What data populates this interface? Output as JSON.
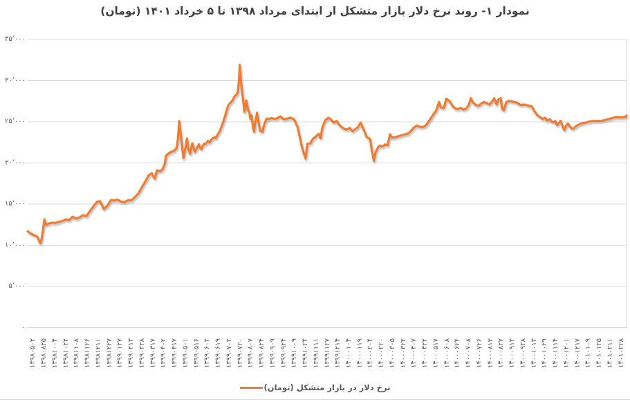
{
  "colors": {
    "line": "#ED7D31",
    "grid": "#D9D9D9",
    "axis_text": "#595959",
    "title_text": "#404040"
  },
  "legend": {
    "label": "نرخ دلار در بازار متشکل (تومان)"
  },
  "chart_data": {
    "type": "line",
    "title": "نمودار ۱- روند نرخ دلار بازار متشکل از ابتدای مرداد ۱۳۹۸ تا ۵ خرداد ۱۴۰۱ (تومان)",
    "xlabel": "",
    "ylabel": "",
    "ylim": [
      0,
      35000
    ],
    "grid": true,
    "legend_position": "bottom",
    "y_ticks": [
      {
        "value": 35000,
        "label": "۳۵٬۰۰۰"
      },
      {
        "value": 30000,
        "label": "۳۰٬۰۰۰"
      },
      {
        "value": 25000,
        "label": "۲۵٬۰۰۰"
      },
      {
        "value": 20000,
        "label": "۲۰٬۰۰۰"
      },
      {
        "value": 15000,
        "label": "۱۵٬۰۰۰"
      },
      {
        "value": 10000,
        "label": "۱۰٬۰۰۰"
      },
      {
        "value": 5000,
        "label": "۵٬۰۰۰"
      },
      {
        "value": 0,
        "label": "۰"
      }
    ],
    "x_tick_labels": [
      "۱۳۹۸۰۵۰۲",
      "۱۳۹۸۰۸۲۵",
      "۱۳۹۸۱۰۰۴",
      "۱۳۹۸۱۰۲۲",
      "۱۳۹۸۱۱۰۸",
      "۱۳۹۸۱۱۲۶",
      "۱۳۹۸۱۲۱۱",
      "۱۳۹۸۱۲۲۷",
      "۱۳۹۹۰۱۲۷",
      "۱۳۹۹۰۲۱۳",
      "۱۳۹۹۰۲۲۸",
      "۱۳۹۹۰۳۱۷",
      "۱۳۹۹۰۴۰۲",
      "۱۳۹۹۰۴۱۷",
      "۱۳۹۹۰۵۰۱",
      "۱۳۹۹۰۵۱۶",
      "۱۳۹۹۰۶۰۲",
      "۱۳۹۹۰۶۱۹",
      "۱۳۹۹۰۷۰۲",
      "۱۳۹۹۰۷۲۰",
      "۱۳۹۹۰۸۰۷",
      "۱۳۹۹۰۸۲۴",
      "۱۳۹۹۰۹۰۹",
      "۱۳۹۹۰۹۲۴",
      "۱۳۹۹۱۰۰۹",
      "۱۳۹۹۱۰۲۴",
      "۱۳۹۹۱۱۱۱",
      "۱۳۹۹۱۱۲۷",
      "۱۳۹۹۱۲۱۴",
      "۱۴۰۰۰۱۰۴",
      "۱۴۰۰۰۱۱۹",
      "۱۴۰۰۰۲۰۴",
      "۱۴۰۰۰۲۲۰",
      "۱۴۰۰۰۳۰۵",
      "۱۴۰۰۰۳۲۲",
      "۱۴۰۰۰۴۰۷",
      "۱۴۰۰۰۴۲۲",
      "۱۴۰۰۰۵۱۷",
      "۱۴۰۰۰۶۰۸",
      "۱۴۰۰۰۶۲۴",
      "۱۴۰۰۰۷۰۸",
      "۱۴۰۰۰۷۲۶",
      "۱۴۰۰۰۸۱۲",
      "۱۴۰۰۰۸۲۷",
      "۱۴۰۰۰۹۱۲",
      "۱۴۰۰۰۹۲۸",
      "۱۴۰۰۱۰۱۳",
      "۱۴۰۰۱۰۲۹",
      "۱۴۰۰۱۱۱۴",
      "۱۴۰۰۱۲۰۱",
      "۱۴۰۰۱۲۱۷",
      "۱۴۰۱۰۱۰۹",
      "۱۴۰۱۰۱۲۵",
      "۱۴۰۱۰۲۱۱",
      "۱۴۰۱۰۲۲۸"
    ],
    "x_unit": "fraction of x-axis (0-1)",
    "series": [
      {
        "name": "نرخ دلار در بازار متشکل (تومان)",
        "color": "#ED7D31",
        "points": [
          [
            0.0,
            11700
          ],
          [
            0.006,
            11400
          ],
          [
            0.01,
            11250
          ],
          [
            0.014,
            11150
          ],
          [
            0.017,
            10950
          ],
          [
            0.021,
            10250
          ],
          [
            0.023,
            10600
          ],
          [
            0.026,
            12100
          ],
          [
            0.028,
            13150
          ],
          [
            0.03,
            12480
          ],
          [
            0.034,
            12600
          ],
          [
            0.037,
            12670
          ],
          [
            0.042,
            12760
          ],
          [
            0.046,
            12700
          ],
          [
            0.052,
            12850
          ],
          [
            0.058,
            12950
          ],
          [
            0.064,
            13150
          ],
          [
            0.069,
            13050
          ],
          [
            0.075,
            13480
          ],
          [
            0.081,
            13230
          ],
          [
            0.087,
            13400
          ],
          [
            0.092,
            13650
          ],
          [
            0.098,
            13550
          ],
          [
            0.104,
            14150
          ],
          [
            0.11,
            14750
          ],
          [
            0.116,
            15300
          ],
          [
            0.121,
            15350
          ],
          [
            0.127,
            14400
          ],
          [
            0.133,
            14800
          ],
          [
            0.139,
            15500
          ],
          [
            0.145,
            15450
          ],
          [
            0.15,
            15550
          ],
          [
            0.156,
            15300
          ],
          [
            0.162,
            15250
          ],
          [
            0.168,
            15500
          ],
          [
            0.173,
            15450
          ],
          [
            0.179,
            15850
          ],
          [
            0.185,
            16300
          ],
          [
            0.191,
            17100
          ],
          [
            0.197,
            17800
          ],
          [
            0.202,
            18500
          ],
          [
            0.207,
            18750
          ],
          [
            0.212,
            18100
          ],
          [
            0.216,
            19100
          ],
          [
            0.221,
            19000
          ],
          [
            0.225,
            19200
          ],
          [
            0.229,
            19900
          ],
          [
            0.231,
            20880
          ],
          [
            0.236,
            21200
          ],
          [
            0.24,
            21350
          ],
          [
            0.245,
            21500
          ],
          [
            0.249,
            21860
          ],
          [
            0.251,
            22980
          ],
          [
            0.253,
            25080
          ],
          [
            0.257,
            22500
          ],
          [
            0.26,
            20600
          ],
          [
            0.264,
            22000
          ],
          [
            0.266,
            22980
          ],
          [
            0.268,
            21860
          ],
          [
            0.271,
            21100
          ],
          [
            0.275,
            22400
          ],
          [
            0.279,
            21350
          ],
          [
            0.282,
            21750
          ],
          [
            0.286,
            22280
          ],
          [
            0.288,
            21800
          ],
          [
            0.29,
            21700
          ],
          [
            0.294,
            22300
          ],
          [
            0.297,
            22300
          ],
          [
            0.301,
            22700
          ],
          [
            0.304,
            22500
          ],
          [
            0.308,
            22950
          ],
          [
            0.312,
            23120
          ],
          [
            0.314,
            23000
          ],
          [
            0.318,
            23550
          ],
          [
            0.321,
            23900
          ],
          [
            0.325,
            24650
          ],
          [
            0.328,
            25300
          ],
          [
            0.332,
            26300
          ],
          [
            0.335,
            27000
          ],
          [
            0.339,
            27350
          ],
          [
            0.342,
            27600
          ],
          [
            0.346,
            28150
          ],
          [
            0.349,
            28300
          ],
          [
            0.351,
            28600
          ],
          [
            0.353,
            30200
          ],
          [
            0.354,
            31900
          ],
          [
            0.356,
            30000
          ],
          [
            0.358,
            28700
          ],
          [
            0.36,
            27450
          ],
          [
            0.362,
            26200
          ],
          [
            0.365,
            27600
          ],
          [
            0.368,
            26400
          ],
          [
            0.37,
            26200
          ],
          [
            0.372,
            25300
          ],
          [
            0.374,
            25800
          ],
          [
            0.376,
            24400
          ],
          [
            0.378,
            23800
          ],
          [
            0.38,
            24900
          ],
          [
            0.383,
            26100
          ],
          [
            0.385,
            25200
          ],
          [
            0.388,
            23900
          ],
          [
            0.392,
            23800
          ],
          [
            0.395,
            24700
          ],
          [
            0.399,
            25400
          ],
          [
            0.402,
            25300
          ],
          [
            0.407,
            25450
          ],
          [
            0.412,
            25350
          ],
          [
            0.416,
            25400
          ],
          [
            0.422,
            25650
          ],
          [
            0.428,
            25300
          ],
          [
            0.434,
            25400
          ],
          [
            0.439,
            25500
          ],
          [
            0.445,
            25300
          ],
          [
            0.451,
            24300
          ],
          [
            0.457,
            22200
          ],
          [
            0.461,
            21200
          ],
          [
            0.464,
            20550
          ],
          [
            0.467,
            22300
          ],
          [
            0.472,
            22400
          ],
          [
            0.476,
            22900
          ],
          [
            0.481,
            23200
          ],
          [
            0.486,
            23550
          ],
          [
            0.489,
            23000
          ],
          [
            0.492,
            24300
          ],
          [
            0.497,
            25200
          ],
          [
            0.502,
            25500
          ],
          [
            0.506,
            25300
          ],
          [
            0.511,
            24900
          ],
          [
            0.516,
            25100
          ],
          [
            0.52,
            24650
          ],
          [
            0.526,
            24250
          ],
          [
            0.532,
            24050
          ],
          [
            0.538,
            24250
          ],
          [
            0.542,
            23850
          ],
          [
            0.547,
            24100
          ],
          [
            0.551,
            24300
          ],
          [
            0.556,
            24900
          ],
          [
            0.559,
            24400
          ],
          [
            0.563,
            23700
          ],
          [
            0.566,
            23150
          ],
          [
            0.57,
            23000
          ],
          [
            0.572,
            22840
          ],
          [
            0.574,
            21800
          ],
          [
            0.578,
            20250
          ],
          [
            0.581,
            21300
          ],
          [
            0.585,
            21900
          ],
          [
            0.588,
            22100
          ],
          [
            0.592,
            21980
          ],
          [
            0.597,
            22250
          ],
          [
            0.601,
            22140
          ],
          [
            0.605,
            23500
          ],
          [
            0.608,
            23100
          ],
          [
            0.613,
            23100
          ],
          [
            0.617,
            23200
          ],
          [
            0.622,
            23300
          ],
          [
            0.627,
            23400
          ],
          [
            0.631,
            23500
          ],
          [
            0.636,
            23600
          ],
          [
            0.64,
            23900
          ],
          [
            0.645,
            24300
          ],
          [
            0.65,
            24550
          ],
          [
            0.654,
            24400
          ],
          [
            0.659,
            24350
          ],
          [
            0.664,
            24500
          ],
          [
            0.668,
            24850
          ],
          [
            0.673,
            25400
          ],
          [
            0.678,
            25950
          ],
          [
            0.682,
            26350
          ],
          [
            0.687,
            27400
          ],
          [
            0.69,
            26750
          ],
          [
            0.695,
            26700
          ],
          [
            0.699,
            27800
          ],
          [
            0.704,
            27550
          ],
          [
            0.709,
            27000
          ],
          [
            0.713,
            26650
          ],
          [
            0.718,
            26550
          ],
          [
            0.723,
            26700
          ],
          [
            0.727,
            26500
          ],
          [
            0.732,
            26600
          ],
          [
            0.737,
            27100
          ],
          [
            0.74,
            27870
          ],
          [
            0.743,
            27400
          ],
          [
            0.748,
            27050
          ],
          [
            0.753,
            26950
          ],
          [
            0.757,
            27200
          ],
          [
            0.762,
            27400
          ],
          [
            0.767,
            27250
          ],
          [
            0.771,
            27100
          ],
          [
            0.776,
            27500
          ],
          [
            0.779,
            27870
          ],
          [
            0.783,
            27100
          ],
          [
            0.786,
            27700
          ],
          [
            0.79,
            27870
          ],
          [
            0.792,
            26600
          ],
          [
            0.795,
            26400
          ],
          [
            0.799,
            27350
          ],
          [
            0.803,
            27550
          ],
          [
            0.809,
            27450
          ],
          [
            0.816,
            27350
          ],
          [
            0.823,
            27050
          ],
          [
            0.83,
            27100
          ],
          [
            0.837,
            26950
          ],
          [
            0.842,
            26850
          ],
          [
            0.846,
            26300
          ],
          [
            0.851,
            25800
          ],
          [
            0.856,
            25550
          ],
          [
            0.86,
            25350
          ],
          [
            0.864,
            25500
          ],
          [
            0.867,
            25150
          ],
          [
            0.872,
            25300
          ],
          [
            0.875,
            25000
          ],
          [
            0.879,
            24950
          ],
          [
            0.881,
            25100
          ],
          [
            0.884,
            24600
          ],
          [
            0.888,
            24950
          ],
          [
            0.89,
            25100
          ],
          [
            0.894,
            24300
          ],
          [
            0.896,
            24000
          ],
          [
            0.899,
            24500
          ],
          [
            0.902,
            24800
          ],
          [
            0.905,
            24450
          ],
          [
            0.909,
            24150
          ],
          [
            0.912,
            24200
          ],
          [
            0.916,
            24500
          ],
          [
            0.92,
            24650
          ],
          [
            0.925,
            24800
          ],
          [
            0.931,
            24900
          ],
          [
            0.937,
            25000
          ],
          [
            0.943,
            25100
          ],
          [
            0.95,
            25120
          ],
          [
            0.957,
            25100
          ],
          [
            0.964,
            25220
          ],
          [
            0.971,
            25350
          ],
          [
            0.978,
            25500
          ],
          [
            0.985,
            25570
          ],
          [
            0.992,
            25520
          ],
          [
            0.998,
            25600
          ],
          [
            1.0,
            25750
          ]
        ]
      }
    ]
  }
}
